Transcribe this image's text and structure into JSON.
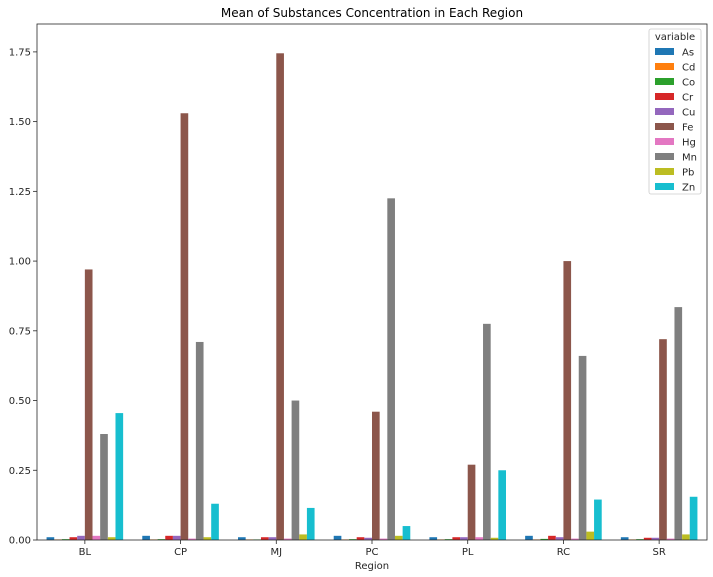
{
  "chart_data": {
    "type": "bar",
    "title": "Mean of Substances Concentration in Each Region",
    "xlabel": "Region",
    "ylabel": "",
    "ylim": [
      0,
      1.85
    ],
    "yticks": [
      "0.00",
      "0.25",
      "0.50",
      "0.75",
      "1.00",
      "1.25",
      "1.50",
      "1.75"
    ],
    "categories": [
      "BL",
      "CP",
      "MJ",
      "PC",
      "PL",
      "RC",
      "SR"
    ],
    "legend_title": "variable",
    "legend_position": "top-right",
    "series": [
      {
        "name": "As",
        "color": "#1f77b4",
        "values": [
          0.01,
          0.015,
          0.01,
          0.015,
          0.01,
          0.015,
          0.01
        ]
      },
      {
        "name": "Cd",
        "color": "#ff7f0e",
        "values": [
          0.002,
          0.002,
          0.002,
          0.002,
          0.002,
          0.002,
          0.002
        ]
      },
      {
        "name": "Co",
        "color": "#2ca02c",
        "values": [
          0.003,
          0.003,
          0.002,
          0.003,
          0.003,
          0.004,
          0.003
        ]
      },
      {
        "name": "Cr",
        "color": "#d62728",
        "values": [
          0.01,
          0.015,
          0.01,
          0.01,
          0.01,
          0.015,
          0.008
        ]
      },
      {
        "name": "Cu",
        "color": "#9467bd",
        "values": [
          0.015,
          0.015,
          0.01,
          0.008,
          0.01,
          0.01,
          0.008
        ]
      },
      {
        "name": "Fe",
        "color": "#8c564b",
        "values": [
          0.97,
          1.53,
          1.745,
          0.46,
          0.27,
          1.0,
          0.72
        ]
      },
      {
        "name": "Hg",
        "color": "#e377c2",
        "values": [
          0.015,
          0.005,
          0.005,
          0.005,
          0.01,
          0.005,
          0.005
        ]
      },
      {
        "name": "Mn",
        "color": "#7f7f7f",
        "values": [
          0.38,
          0.71,
          0.5,
          1.225,
          0.775,
          0.66,
          0.835
        ]
      },
      {
        "name": "Pb",
        "color": "#bcbd22",
        "values": [
          0.01,
          0.01,
          0.02,
          0.015,
          0.008,
          0.03,
          0.02
        ]
      },
      {
        "name": "Zn",
        "color": "#17becf",
        "values": [
          0.455,
          0.13,
          0.115,
          0.05,
          0.25,
          0.145,
          0.155
        ]
      }
    ]
  }
}
